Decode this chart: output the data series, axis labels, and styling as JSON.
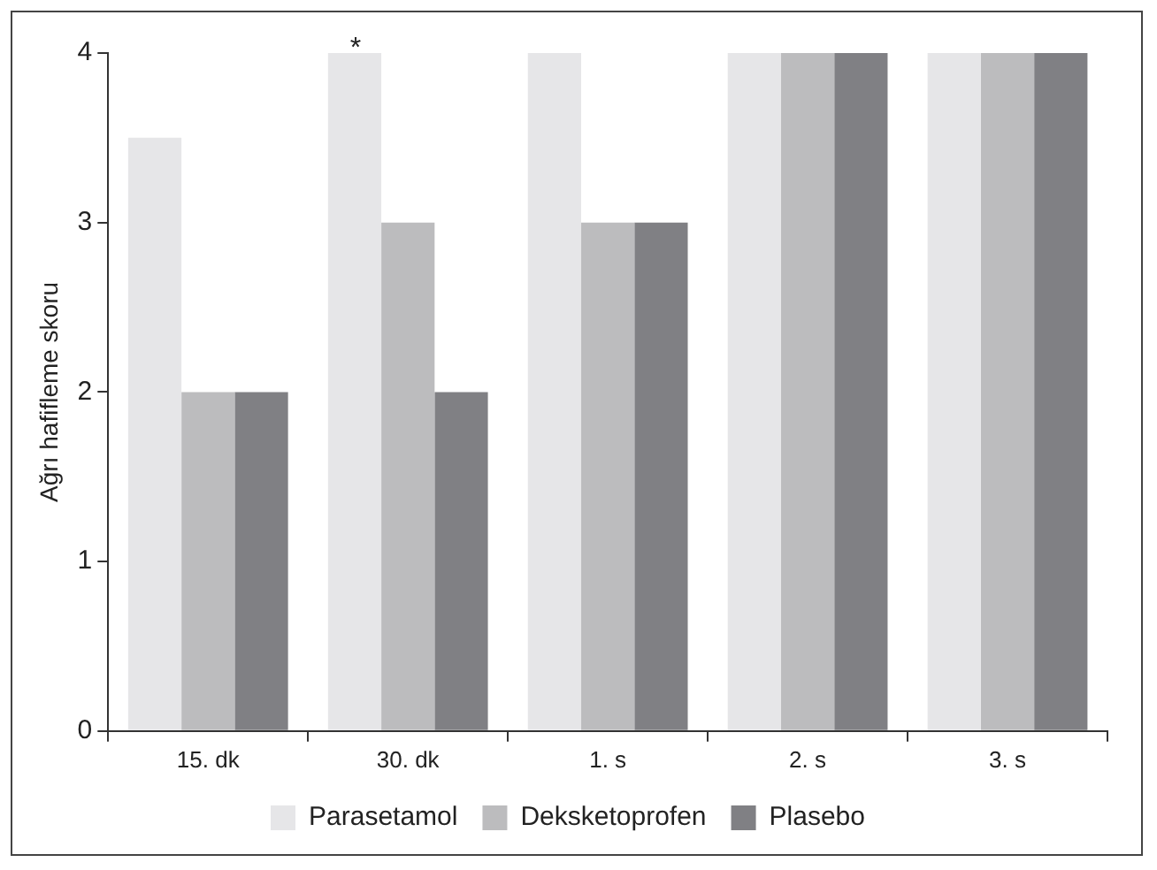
{
  "chart_data": {
    "type": "bar",
    "ylabel": "Ağrı hafifleme skoru",
    "categories": [
      "15. dk",
      "30. dk",
      "1. s",
      "2. s",
      "3. s"
    ],
    "series": [
      {
        "name": "Parasetamol",
        "color": "#e6e6e8",
        "values": [
          3.5,
          4,
          4,
          4,
          4
        ]
      },
      {
        "name": "Deksketoprofen",
        "color": "#bcbcbe",
        "values": [
          2,
          3,
          3,
          4,
          4
        ]
      },
      {
        "name": "Plasebo",
        "color": "#808084",
        "values": [
          2,
          2,
          3,
          4,
          4
        ]
      }
    ],
    "ylim": [
      0,
      4
    ],
    "yticks": [
      0,
      1,
      2,
      3,
      4
    ],
    "legend": "bottom",
    "annotations": [
      "*"
    ]
  }
}
